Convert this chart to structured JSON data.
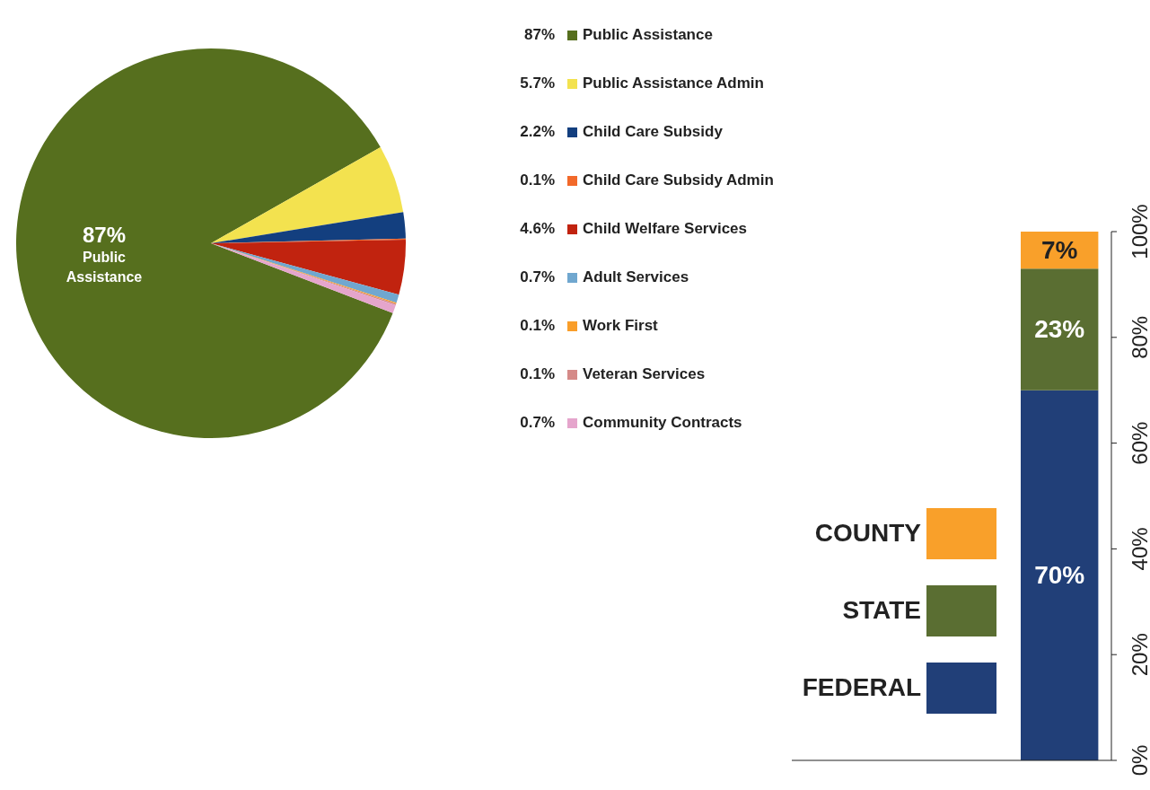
{
  "chart_data": [
    {
      "type": "pie",
      "categories": [
        "Public Assistance",
        "Public Assistance Admin",
        "Child Care Subsidy",
        "Child Care Subsidy Admin",
        "Child Welfare Services",
        "Adult Services",
        "Work First",
        "Veteran Services",
        "Community Contracts"
      ],
      "values": [
        87,
        5.7,
        2.2,
        0.1,
        4.6,
        0.7,
        0.1,
        0.1,
        0.7
      ],
      "value_labels": [
        "87%",
        "5.7%",
        "2.2%",
        "0.1%",
        "4.6%",
        "0.7%",
        "0.1%",
        "0.1%",
        "0.7%"
      ],
      "colors": [
        "#566f1e",
        "#f3e24f",
        "#133f7f",
        "#f2692a",
        "#c1230f",
        "#70a7cf",
        "#f99e2a",
        "#d58a88",
        "#e5a5cc"
      ],
      "legend": "right"
    },
    {
      "type": "bar",
      "stacked": true,
      "categories": [
        null
      ],
      "series": [
        {
          "name": "FEDERAL",
          "color": "#213f78",
          "values": [
            70
          ],
          "value_labels": [
            "70%"
          ]
        },
        {
          "name": "STATE",
          "color": "#5a6e32",
          "values": [
            23
          ],
          "value_labels": [
            "23%"
          ]
        },
        {
          "name": "COUNTY",
          "color": "#f9a02a",
          "values": [
            7
          ],
          "value_labels": [
            "7%"
          ]
        }
      ],
      "ylim": [
        0,
        100
      ],
      "yticks": [
        {
          "value": 0,
          "label": "0%"
        },
        {
          "value": 20,
          "label": "20%"
        },
        {
          "value": 40,
          "label": "40%"
        },
        {
          "value": 60,
          "label": "60%"
        },
        {
          "value": 80,
          "label": "80%"
        },
        {
          "value": 100,
          "label": "100%"
        }
      ],
      "legend": "bottom left"
    }
  ]
}
